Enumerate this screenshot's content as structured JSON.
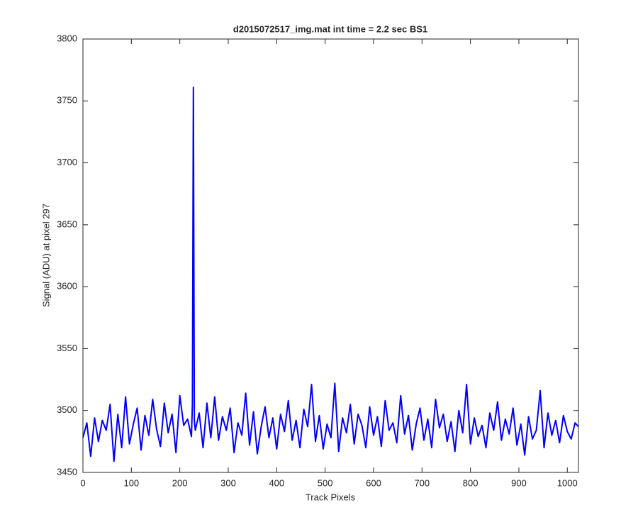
{
  "chart_data": {
    "type": "line",
    "title": "d2015072517_img.mat int time = 2.2 sec   BS1",
    "xlabel": "Track Pixels",
    "ylabel": "Signal (ADU) at pixel 297",
    "x": [
      0,
      8,
      16,
      24,
      32,
      40,
      48,
      56,
      64,
      72,
      80,
      88,
      96,
      104,
      112,
      120,
      128,
      136,
      144,
      152,
      160,
      168,
      176,
      184,
      192,
      200,
      208,
      216,
      224,
      226,
      228,
      230,
      232,
      240,
      248,
      256,
      264,
      272,
      280,
      288,
      296,
      304,
      312,
      320,
      328,
      336,
      344,
      352,
      360,
      368,
      376,
      384,
      392,
      400,
      408,
      416,
      424,
      432,
      440,
      448,
      456,
      464,
      472,
      480,
      488,
      496,
      504,
      512,
      520,
      528,
      536,
      544,
      552,
      560,
      568,
      576,
      584,
      592,
      600,
      608,
      616,
      624,
      632,
      640,
      648,
      656,
      664,
      672,
      680,
      688,
      696,
      704,
      712,
      720,
      728,
      736,
      744,
      752,
      760,
      768,
      776,
      784,
      792,
      800,
      808,
      816,
      824,
      832,
      840,
      848,
      856,
      864,
      872,
      880,
      888,
      896,
      904,
      912,
      920,
      928,
      936,
      944,
      952,
      960,
      968,
      976,
      984,
      992,
      1000,
      1008,
      1016,
      1023
    ],
    "series": [
      {
        "name": "signal",
        "color": "#0000ff",
        "values": [
          3478,
          3490,
          3463,
          3494,
          3475,
          3492,
          3484,
          3505,
          3459,
          3497,
          3470,
          3511,
          3473,
          3489,
          3502,
          3468,
          3496,
          3480,
          3509,
          3485,
          3471,
          3506,
          3482,
          3497,
          3466,
          3512,
          3488,
          3493,
          3479,
          3505,
          3761,
          3492,
          3484,
          3498,
          3470,
          3506,
          3478,
          3511,
          3476,
          3495,
          3484,
          3502,
          3466,
          3490,
          3480,
          3514,
          3472,
          3499,
          3465,
          3487,
          3503,
          3478,
          3494,
          3469,
          3497,
          3483,
          3508,
          3476,
          3492,
          3470,
          3501,
          3487,
          3521,
          3475,
          3496,
          3469,
          3489,
          3478,
          3522,
          3467,
          3494,
          3482,
          3505,
          3473,
          3497,
          3488,
          3470,
          3503,
          3480,
          3495,
          3471,
          3508,
          3484,
          3490,
          3474,
          3512,
          3481,
          3496,
          3468,
          3489,
          3502,
          3476,
          3493,
          3470,
          3509,
          3486,
          3497,
          3475,
          3491,
          3467,
          3500,
          3482,
          3521,
          3473,
          3494,
          3479,
          3488,
          3470,
          3498,
          3484,
          3507,
          3476,
          3493,
          3481,
          3502,
          3472,
          3489,
          3464,
          3495,
          3477,
          3484,
          3516,
          3470,
          3498,
          3480,
          3492,
          3474,
          3496,
          3483,
          3477,
          3490,
          3487
        ]
      }
    ],
    "xlim": [
      0,
      1023
    ],
    "ylim": [
      3450,
      3800
    ],
    "xticks": [
      0,
      100,
      200,
      300,
      400,
      500,
      600,
      700,
      800,
      900,
      1000
    ],
    "yticks": [
      3450,
      3500,
      3550,
      3600,
      3650,
      3700,
      3750,
      3800
    ]
  }
}
